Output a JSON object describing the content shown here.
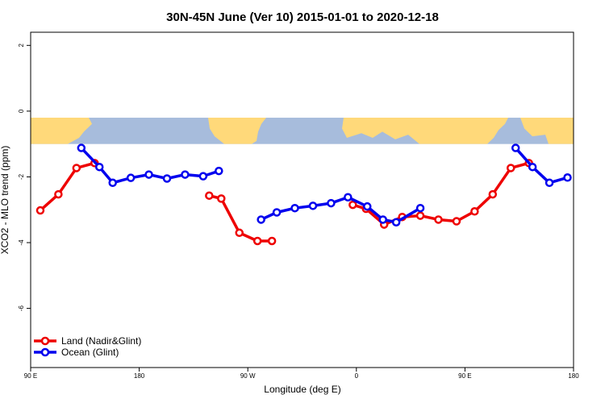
{
  "chart_data": {
    "type": "line",
    "title": "30N-45N June (Ver 10)   2015-01-01 to 2020-12-18",
    "xlabel": "Longitude (deg E)",
    "ylabel": "XCO2 - MLO trend (ppm)",
    "xlim": [
      90,
      540
    ],
    "ylim": [
      -7.8,
      2.4
    ],
    "x_ticks": [
      {
        "value": 90,
        "label": "90 E"
      },
      {
        "value": 180,
        "label": "180"
      },
      {
        "value": 270,
        "label": "90 W"
      },
      {
        "value": 360,
        "label": "0"
      },
      {
        "value": 450,
        "label": "90 E"
      },
      {
        "value": 540,
        "label": "180"
      }
    ],
    "y_ticks": [
      {
        "value": 2,
        "label": "2"
      },
      {
        "value": 0,
        "label": "0"
      },
      {
        "value": -2,
        "label": "-2"
      },
      {
        "value": -4,
        "label": "-4"
      },
      {
        "value": -6,
        "label": "-6"
      }
    ],
    "grid": false,
    "legend_position": "bottom-left",
    "map_band": {
      "y_top": -0.2,
      "y_bottom": -1.0,
      "ocean_color": "#A7BCDC",
      "land_color": "#FFD97A"
    },
    "series": [
      {
        "name": "Land (Nadir&Glint)",
        "color": "#EE0000",
        "segments": [
          [
            [
              98,
              -3.02
            ],
            [
              113,
              -2.53
            ],
            [
              128,
              -1.73
            ],
            [
              143,
              -1.58
            ]
          ],
          [
            [
              238,
              -2.57
            ],
            [
              248,
              -2.66
            ],
            [
              263,
              -3.7
            ],
            [
              278,
              -3.95
            ],
            [
              290,
              -3.95
            ]
          ],
          [
            [
              357,
              -2.85
            ],
            [
              368,
              -2.97
            ],
            [
              383,
              -3.45
            ],
            [
              398,
              -3.22
            ],
            [
              413,
              -3.18
            ],
            [
              428,
              -3.3
            ],
            [
              443,
              -3.35
            ],
            [
              458,
              -3.05
            ],
            [
              473,
              -2.53
            ],
            [
              488,
              -1.73
            ],
            [
              503,
              -1.58
            ]
          ]
        ]
      },
      {
        "name": "Ocean (Glint)",
        "color": "#0000EE",
        "segments": [
          [
            [
              132,
              -1.12
            ],
            [
              147,
              -1.7
            ],
            [
              158,
              -2.18
            ],
            [
              173,
              -2.03
            ],
            [
              188,
              -1.93
            ],
            [
              203,
              -2.05
            ],
            [
              218,
              -1.93
            ],
            [
              233,
              -1.98
            ],
            [
              246,
              -1.82
            ]
          ],
          [
            [
              281,
              -3.3
            ],
            [
              294,
              -3.08
            ],
            [
              309,
              -2.95
            ],
            [
              324,
              -2.88
            ],
            [
              339,
              -2.8
            ],
            [
              353,
              -2.62
            ],
            [
              369,
              -2.9
            ],
            [
              382,
              -3.3
            ],
            [
              393,
              -3.38
            ],
            [
              413,
              -2.95
            ]
          ],
          [
            [
              492,
              -1.12
            ],
            [
              506,
              -1.7
            ],
            [
              520,
              -2.18
            ],
            [
              535,
              -2.02
            ]
          ]
        ]
      }
    ]
  }
}
